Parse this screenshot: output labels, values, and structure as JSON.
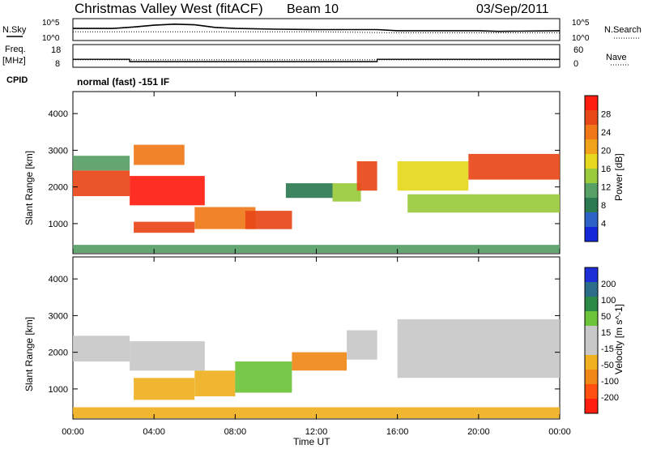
{
  "header": {
    "title": "Christmas Valley West (fitACF)",
    "beam": "Beam 10",
    "date": "03/Sep/2011"
  },
  "left_labels": {
    "noise_sky": "N.Sky",
    "freq": "Freq.",
    "freq_unit": "[MHz]",
    "cpid": "CPID"
  },
  "right_labels": {
    "noise_search": "N.Search",
    "nave": "Nave"
  },
  "noise_axis_ticks": [
    "10^5",
    "10^0"
  ],
  "freq_axis_ticks": [
    "18",
    "8"
  ],
  "nave_axis_ticks": [
    "60",
    "0"
  ],
  "cpid_text": "normal (fast) -151 IF",
  "colors": {
    "power_scale": [
      "#1428d8",
      "#2e62c6",
      "#2c7a52",
      "#57a066",
      "#9acb3c",
      "#e6d81e",
      "#f0a21a",
      "#f07818",
      "#e84818",
      "#ff1e10"
    ],
    "velocity_scale": [
      "#1e2fd8",
      "#2c6e8a",
      "#2a8a46",
      "#6cc43a",
      "#c8c8c8",
      "#c8c8c8",
      "#f0b020",
      "#f08818",
      "#ff5010",
      "#ff1e10"
    ]
  },
  "chart_data": [
    {
      "type": "line",
      "name": "noise-panel",
      "ylabel_left": "N.Sky",
      "ylabel_right": "N.Search",
      "x_range_hours": [
        0,
        24
      ],
      "series": [
        {
          "name": "N.Sky",
          "x": [
            0,
            2,
            3,
            4,
            5,
            6,
            7,
            8,
            10,
            12,
            14,
            15,
            16,
            18,
            20,
            21,
            24
          ],
          "y": [
            0.55,
            0.55,
            0.62,
            0.7,
            0.75,
            0.72,
            0.6,
            0.55,
            0.52,
            0.5,
            0.5,
            0.5,
            0.45,
            0.45,
            0.45,
            0.42,
            0.45
          ]
        },
        {
          "name": "N.Search",
          "x": [
            0,
            4,
            8,
            12,
            16,
            20,
            24
          ],
          "y": [
            0.4,
            0.4,
            0.4,
            0.4,
            0.35,
            0.35,
            0.35
          ]
        }
      ]
    },
    {
      "type": "line",
      "name": "frequency-nave-panel",
      "x_range_hours": [
        0,
        24
      ],
      "series": [
        {
          "name": "Freq.",
          "x": [
            0,
            2.8,
            2.8,
            15,
            15,
            21,
            21,
            24
          ],
          "y": [
            11.5,
            11.5,
            10.5,
            10.5,
            11.5,
            11.5,
            11.5,
            11.5
          ]
        },
        {
          "name": "Nave",
          "x": [
            0,
            24
          ],
          "y": [
            20,
            20
          ]
        }
      ]
    },
    {
      "type": "heatmap",
      "title": "Power",
      "xlabel": "Time UT",
      "ylabel": "Slant Range [km]",
      "x_ticks": [
        "00:00",
        "04:00",
        "08:00",
        "12:00",
        "16:00",
        "20:00",
        "00:00"
      ],
      "x_range_hours": [
        0,
        24
      ],
      "y_ticks": [
        1000,
        2000,
        3000,
        4000
      ],
      "y_range_km": [
        180,
        4600
      ],
      "colorbar_label": "Power [dB]",
      "colorbar_ticks": [
        4,
        8,
        12,
        16,
        20,
        24,
        28
      ],
      "regions": [
        {
          "t0": 0,
          "t1": 2.8,
          "r0": 1750,
          "r1": 2450,
          "level": 0.92
        },
        {
          "t0": 0,
          "t1": 2.8,
          "r0": 2450,
          "r1": 2850,
          "level": 0.35
        },
        {
          "t0": 2.8,
          "t1": 6.5,
          "r0": 1500,
          "r1": 2300,
          "level": 0.95
        },
        {
          "t0": 3.0,
          "t1": 5.5,
          "r0": 2600,
          "r1": 3150,
          "level": 0.75
        },
        {
          "t0": 3.0,
          "t1": 6.0,
          "r0": 750,
          "r1": 1050,
          "level": 0.88
        },
        {
          "t0": 6.0,
          "t1": 9.0,
          "r0": 850,
          "r1": 1450,
          "level": 0.82
        },
        {
          "t0": 8.5,
          "t1": 10.8,
          "r0": 850,
          "r1": 1350,
          "level": 0.93
        },
        {
          "t0": 10.5,
          "t1": 12.8,
          "r0": 1700,
          "r1": 2100,
          "level": 0.2
        },
        {
          "t0": 12.8,
          "t1": 14.2,
          "r0": 1600,
          "r1": 2100,
          "level": 0.4
        },
        {
          "t0": 14.0,
          "t1": 15.0,
          "r0": 1900,
          "r1": 2700,
          "level": 0.85
        },
        {
          "t0": 16.0,
          "t1": 19.5,
          "r0": 1900,
          "r1": 2700,
          "level": 0.6
        },
        {
          "t0": 16.5,
          "t1": 24,
          "r0": 1300,
          "r1": 1800,
          "level": 0.45
        },
        {
          "t0": 19.5,
          "t1": 24,
          "r0": 2200,
          "r1": 2900,
          "level": 0.85
        },
        {
          "t0": 0,
          "t1": 24,
          "r0": 200,
          "r1": 420,
          "level": 0.3
        }
      ]
    },
    {
      "type": "heatmap",
      "title": "Velocity",
      "xlabel": "Time UT",
      "ylabel": "Slant Range [km]",
      "x_ticks": [
        "00:00",
        "04:00",
        "08:00",
        "12:00",
        "16:00",
        "20:00",
        "00:00"
      ],
      "x_range_hours": [
        0,
        24
      ],
      "y_ticks": [
        1000,
        2000,
        3000,
        4000
      ],
      "y_range_km": [
        180,
        4600
      ],
      "colorbar_label": "Velocity [m s^-1]",
      "colorbar_ticks": [
        200,
        100,
        50,
        15,
        -15,
        -50,
        -100,
        -200
      ],
      "regions": [
        {
          "t0": 0,
          "t1": 2.8,
          "r0": 1750,
          "r1": 2450,
          "level": 0.5
        },
        {
          "t0": 2.8,
          "t1": 6.5,
          "r0": 1500,
          "r1": 2300,
          "level": 0.5
        },
        {
          "t0": 3.0,
          "t1": 6.0,
          "r0": 700,
          "r1": 1300,
          "level": 0.7
        },
        {
          "t0": 6.0,
          "t1": 8.0,
          "r0": 800,
          "r1": 1500,
          "level": 0.72
        },
        {
          "t0": 8.0,
          "t1": 10.8,
          "r0": 900,
          "r1": 1750,
          "level": 0.3
        },
        {
          "t0": 10.8,
          "t1": 13.5,
          "r0": 1500,
          "r1": 2000,
          "level": 0.8
        },
        {
          "t0": 13.5,
          "t1": 15.0,
          "r0": 1800,
          "r1": 2600,
          "level": 0.5
        },
        {
          "t0": 16.0,
          "t1": 24,
          "r0": 1300,
          "r1": 2900,
          "level": 0.5
        },
        {
          "t0": 0,
          "t1": 24,
          "r0": 200,
          "r1": 500,
          "level": 0.62
        }
      ]
    }
  ]
}
